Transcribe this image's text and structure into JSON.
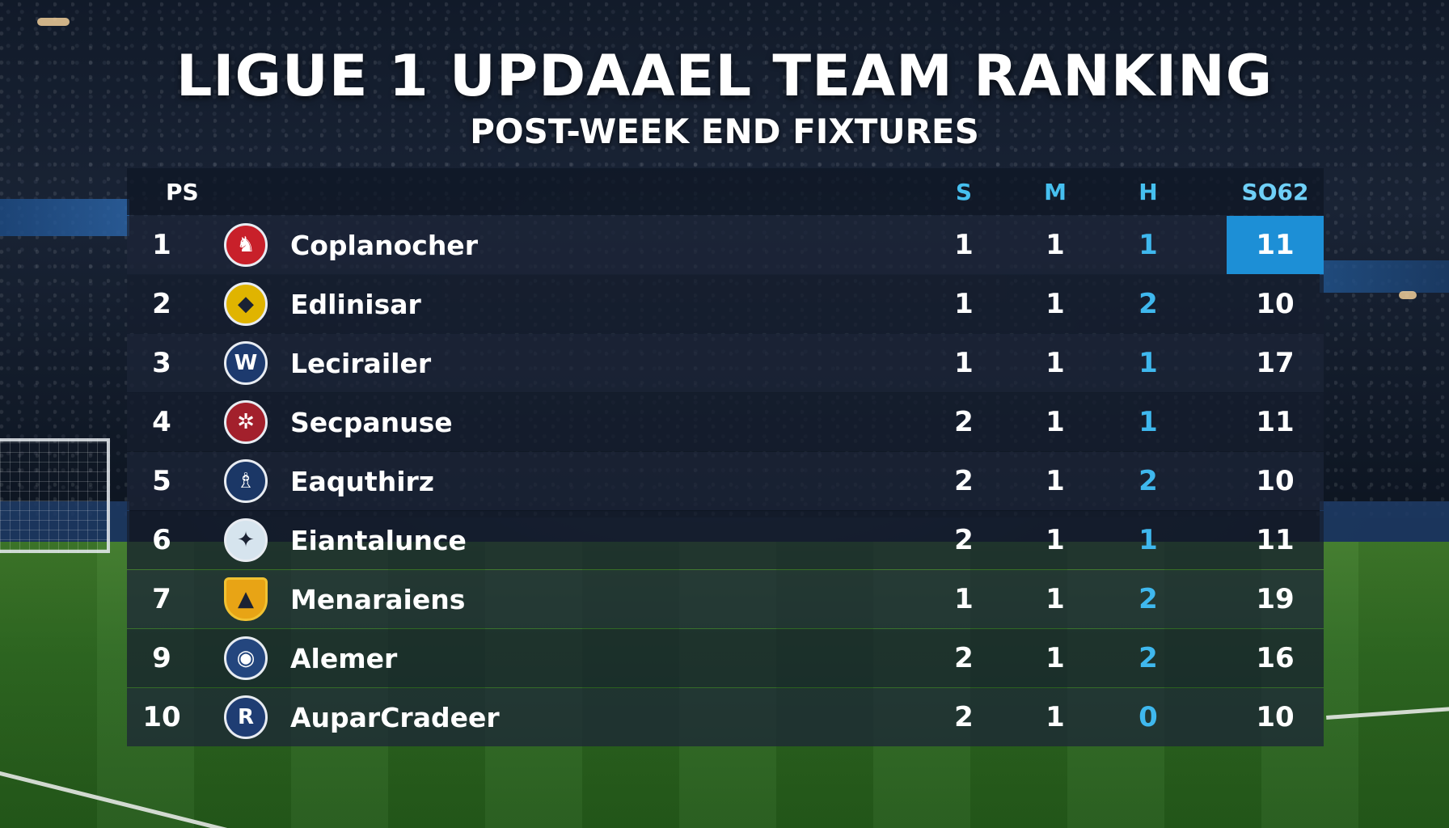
{
  "header": {
    "title": "LIGUE 1 UPDAAEL TEAM RANKING",
    "subtitle": "POST-WEEK END FIXTURES"
  },
  "table": {
    "columns": {
      "pos": "PS",
      "s": "S",
      "m": "M",
      "h": "H",
      "score": "SO62"
    },
    "rows": [
      {
        "pos": "1",
        "team": "Coplanocher",
        "s": "1",
        "m": "1",
        "h": "1",
        "score": "11",
        "crest_color": "#c8202a",
        "crest_icon": "lion-crest-icon",
        "crest_glyph": "♞"
      },
      {
        "pos": "2",
        "team": "Edlinisar",
        "s": "1",
        "m": "1",
        "h": "2",
        "score": "10",
        "crest_color": "#e0b400",
        "crest_icon": "yellow-crest-icon",
        "crest_glyph": "◆"
      },
      {
        "pos": "3",
        "team": "Lecirailer",
        "s": "1",
        "m": "1",
        "h": "1",
        "score": "17",
        "crest_color": "#1d3a6e",
        "crest_icon": "w-crest-icon",
        "crest_glyph": "W"
      },
      {
        "pos": "4",
        "team": "Secpanuse",
        "s": "2",
        "m": "1",
        "h": "1",
        "score": "11",
        "crest_color": "#a3202c",
        "crest_icon": "red-crest-icon",
        "crest_glyph": "✲"
      },
      {
        "pos": "5",
        "team": "Eaquthirz",
        "s": "2",
        "m": "1",
        "h": "2",
        "score": "10",
        "crest_color": "#1b3766",
        "crest_icon": "blue-crest-icon",
        "crest_glyph": "♗"
      },
      {
        "pos": "6",
        "team": "Eiantalunce",
        "s": "2",
        "m": "1",
        "h": "1",
        "score": "11",
        "crest_color": "#d6e4ee",
        "crest_icon": "white-crest-icon",
        "crest_glyph": "✦"
      },
      {
        "pos": "7",
        "team": "Menaraiens",
        "s": "1",
        "m": "1",
        "h": "2",
        "score": "19",
        "crest_color": "#e8a415",
        "crest_icon": "shield-crest-icon",
        "crest_glyph": "▲"
      },
      {
        "pos": "9",
        "team": "Alemer",
        "s": "2",
        "m": "1",
        "h": "2",
        "score": "16",
        "crest_color": "#24467e",
        "crest_icon": "round-crest-icon",
        "crest_glyph": "◉"
      },
      {
        "pos": "10",
        "team": "AuparCradeer",
        "s": "2",
        "m": "1",
        "h": "0",
        "score": "10",
        "crest_color": "#1f3d73",
        "crest_icon": "r-crest-icon",
        "crest_glyph": "R"
      }
    ]
  },
  "colors": {
    "accent": "#1d8fd6",
    "header_text": "#46c0f0",
    "h_column": "#3fb8ee"
  }
}
